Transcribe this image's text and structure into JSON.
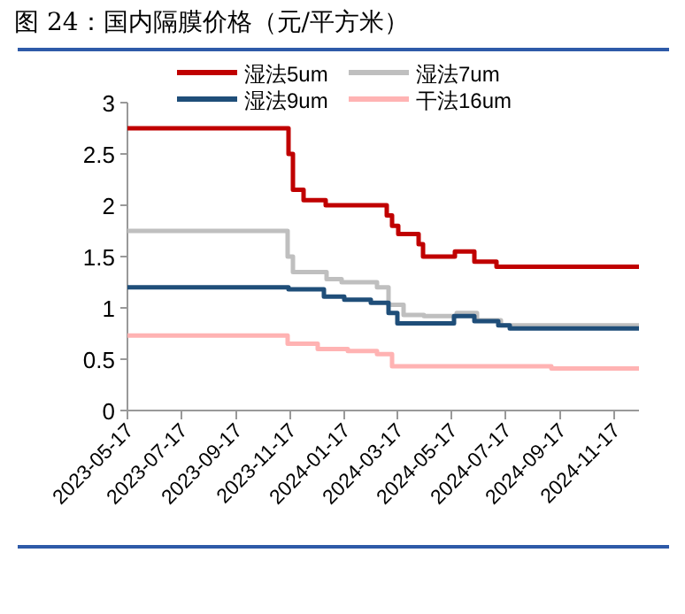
{
  "chart_data": {
    "type": "step",
    "title": "图 24：国内隔膜价格（元/平方米）",
    "xlim": [
      "2023-05-17",
      "2024-12-15"
    ],
    "ylim": [
      0,
      3
    ],
    "yticks": [
      0,
      0.5,
      1,
      1.5,
      2,
      2.5,
      3
    ],
    "xticks": [
      "2023-05-17",
      "2023-07-17",
      "2023-09-17",
      "2023-11-17",
      "2024-01-17",
      "2024-03-17",
      "2024-05-17",
      "2024-07-17",
      "2024-09-17",
      "2024-11-17"
    ],
    "legend": "top",
    "grid": false,
    "series": [
      {
        "name": "湿法5um",
        "color": "#c00000",
        "x": [
          "2023-05-17",
          "2023-11-15",
          "2023-11-20",
          "2023-12-02",
          "2023-12-27",
          "2024-03-05",
          "2024-03-11",
          "2024-03-18",
          "2024-04-10",
          "2024-04-15",
          "2024-05-21",
          "2024-06-12",
          "2024-07-07",
          "2024-12-15"
        ],
        "values": [
          2.75,
          2.5,
          2.15,
          2.05,
          2.0,
          1.9,
          1.8,
          1.72,
          1.62,
          1.5,
          1.55,
          1.45,
          1.4,
          1.4
        ]
      },
      {
        "name": "湿法7um",
        "color": "#bfbfbf",
        "x": [
          "2023-05-17",
          "2023-11-14",
          "2023-11-20",
          "2023-12-28",
          "2024-01-14",
          "2024-02-23",
          "2024-03-07",
          "2024-03-24",
          "2024-04-16",
          "2024-05-23",
          "2024-06-15",
          "2024-07-12",
          "2024-12-15"
        ],
        "values": [
          1.75,
          1.5,
          1.35,
          1.28,
          1.25,
          1.2,
          1.03,
          0.93,
          0.92,
          0.95,
          0.88,
          0.83,
          0.83
        ]
      },
      {
        "name": "湿法9um",
        "color": "#1f4e79",
        "x": [
          "2023-05-17",
          "2023-11-15",
          "2023-12-25",
          "2024-01-17",
          "2024-02-16",
          "2024-03-07",
          "2024-03-17",
          "2024-05-20",
          "2024-06-12",
          "2024-07-09",
          "2024-07-22",
          "2024-12-15"
        ],
        "values": [
          1.2,
          1.18,
          1.11,
          1.08,
          1.05,
          0.95,
          0.85,
          0.92,
          0.87,
          0.83,
          0.8,
          0.8
        ]
      },
      {
        "name": "干法16um",
        "color": "#ffb3b3",
        "x": [
          "2023-05-17",
          "2023-11-14",
          "2023-12-18",
          "2024-01-21",
          "2024-02-23",
          "2024-03-11",
          "2024-09-07",
          "2024-12-15"
        ],
        "values": [
          0.73,
          0.65,
          0.6,
          0.58,
          0.55,
          0.43,
          0.41,
          0.41
        ]
      }
    ]
  }
}
